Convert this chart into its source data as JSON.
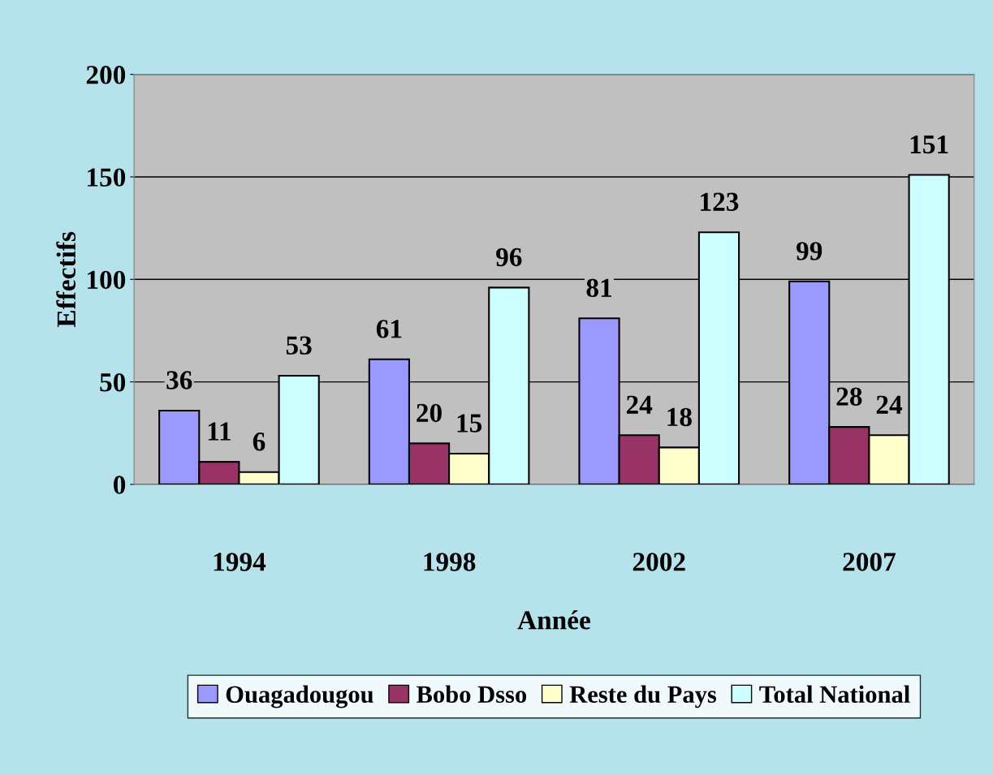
{
  "chart_data": {
    "type": "bar",
    "xlabel": "Année",
    "ylabel": "Effectifs",
    "categories": [
      "1994",
      "1998",
      "2002",
      "2007"
    ],
    "series": [
      {
        "name": "Ouagadougou",
        "color": "#9999ff",
        "values": [
          36,
          61,
          81,
          99
        ]
      },
      {
        "name": "Bobo Dsso",
        "color": "#993366",
        "values": [
          11,
          20,
          24,
          28
        ]
      },
      {
        "name": "Reste du Pays",
        "color": "#ffffcc",
        "values": [
          6,
          15,
          18,
          24
        ]
      },
      {
        "name": "Total National",
        "color": "#ccffff",
        "values": [
          53,
          96,
          123,
          151
        ]
      }
    ],
    "ylim": [
      0,
      200
    ],
    "yticks": [
      0,
      50,
      100,
      150,
      200
    ],
    "grid": "y",
    "legend": "bottom",
    "data_labels": true
  }
}
